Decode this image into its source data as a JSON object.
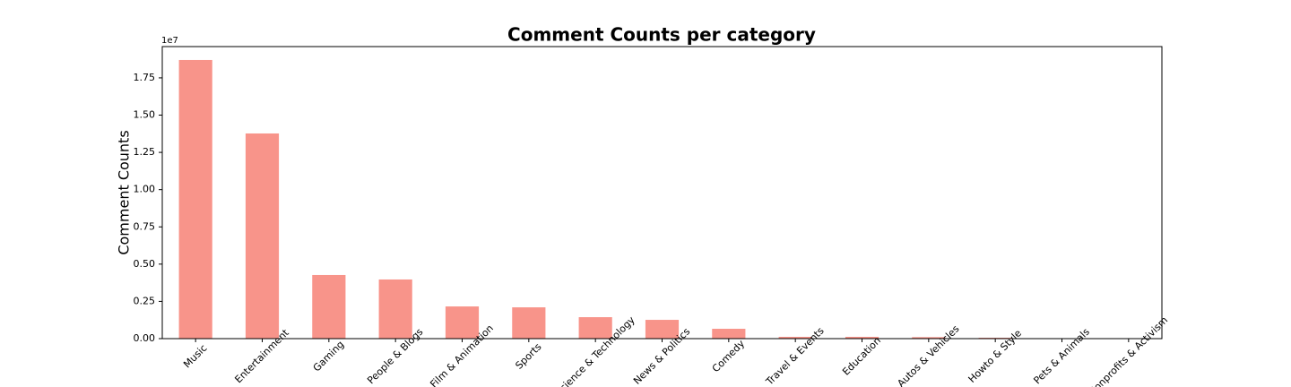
{
  "chart_data": {
    "type": "bar",
    "title": "Comment Counts per category",
    "ylabel": "Comment Counts",
    "y_offset_label": "1e7",
    "categories": [
      "Music",
      "Entertainment",
      "Gaming",
      "People & Blogs",
      "Film & Animation",
      "Sports",
      "Science & Technology",
      "News & Politics",
      "Comedy",
      "Travel & Events",
      "Education",
      "Autos & Vehicles",
      "Howto & Style",
      "Pets & Animals",
      "Nonprofits & Activism"
    ],
    "values": [
      1.87,
      1.377,
      0.427,
      0.397,
      0.216,
      0.21,
      0.144,
      0.126,
      0.066,
      0.012,
      0.012,
      0.01,
      0.006,
      0.001,
      0.0005
    ],
    "color": "#f8948a",
    "ylim": [
      0,
      1.96
    ],
    "yticks": [
      {
        "value": 0,
        "label": "0.00"
      },
      {
        "value": 0.25,
        "label": "0.25"
      },
      {
        "value": 0.5,
        "label": "0.50"
      },
      {
        "value": 0.75,
        "label": "0.75"
      },
      {
        "value": 1,
        "label": "1.00"
      },
      {
        "value": 1.25,
        "label": "1.25"
      },
      {
        "value": 1.5,
        "label": "1.50"
      },
      {
        "value": 1.75,
        "label": "1.75"
      }
    ],
    "grid": false
  }
}
